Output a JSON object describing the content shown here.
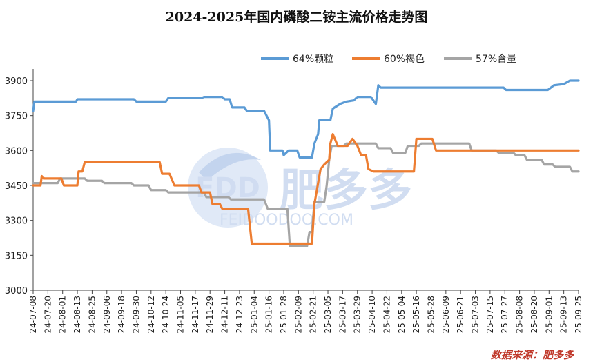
{
  "chart_data": {
    "type": "line",
    "title": "2024-2025年国内磷酸二铵主流价格走势图",
    "xlabel": "",
    "ylabel": "",
    "ylim": [
      3000,
      4050
    ],
    "yticks": [
      3000,
      3150,
      3300,
      3450,
      3600,
      3750,
      3900
    ],
    "xlim": [
      "2024-07-08",
      "2025-09-25"
    ],
    "xticks": [
      "24-07-08",
      "24-07-20",
      "24-08-01",
      "24-08-13",
      "24-08-25",
      "24-09-06",
      "24-09-18",
      "24-09-30",
      "24-10-12",
      "24-10-24",
      "24-11-05",
      "24-11-17",
      "24-11-29",
      "24-12-11",
      "24-12-23",
      "25-01-04",
      "25-01-16",
      "25-01-28",
      "25-02-09",
      "25-02-21",
      "25-03-05",
      "25-03-17",
      "25-03-29",
      "25-04-10",
      "25-04-22",
      "25-05-04",
      "25-05-16",
      "25-05-28",
      "25-06-09",
      "25-06-21",
      "25-07-03",
      "25-07-15",
      "25-07-27",
      "25-08-08",
      "25-08-20",
      "25-09-01",
      "25-09-13",
      "25-09-25"
    ],
    "legend_position": "top-right",
    "grid": false,
    "series": [
      {
        "name": "64%颗粒",
        "color": "#5b9bd5",
        "points": [
          [
            "2024-07-08",
            3770
          ],
          [
            "2024-07-09",
            3810
          ],
          [
            "2024-08-12",
            3810
          ],
          [
            "2024-08-13",
            3820
          ],
          [
            "2024-09-28",
            3820
          ],
          [
            "2024-09-30",
            3810
          ],
          [
            "2024-10-24",
            3810
          ],
          [
            "2024-10-26",
            3825
          ],
          [
            "2024-11-22",
            3825
          ],
          [
            "2024-11-24",
            3830
          ],
          [
            "2024-12-09",
            3830
          ],
          [
            "2024-12-11",
            3820
          ],
          [
            "2024-12-15",
            3820
          ],
          [
            "2024-12-17",
            3785
          ],
          [
            "2024-12-27",
            3785
          ],
          [
            "2024-12-29",
            3770
          ],
          [
            "2025-01-12",
            3770
          ],
          [
            "2025-01-16",
            3730
          ],
          [
            "2025-01-17",
            3600
          ],
          [
            "2025-01-27",
            3600
          ],
          [
            "2025-01-28",
            3580
          ],
          [
            "2025-02-01",
            3600
          ],
          [
            "2025-02-08",
            3600
          ],
          [
            "2025-02-10",
            3570
          ],
          [
            "2025-02-20",
            3570
          ],
          [
            "2025-02-22",
            3630
          ],
          [
            "2025-02-25",
            3670
          ],
          [
            "2025-02-26",
            3730
          ],
          [
            "2025-03-07",
            3730
          ],
          [
            "2025-03-09",
            3780
          ],
          [
            "2025-03-15",
            3800
          ],
          [
            "2025-03-20",
            3810
          ],
          [
            "2025-03-26",
            3815
          ],
          [
            "2025-03-29",
            3830
          ],
          [
            "2025-04-09",
            3830
          ],
          [
            "2025-04-13",
            3800
          ],
          [
            "2025-04-15",
            3880
          ],
          [
            "2025-04-17",
            3870
          ],
          [
            "2025-07-26",
            3870
          ],
          [
            "2025-07-28",
            3860
          ],
          [
            "2025-08-31",
            3860
          ],
          [
            "2025-09-05",
            3880
          ],
          [
            "2025-09-13",
            3885
          ],
          [
            "2025-09-18",
            3900
          ],
          [
            "2025-09-25",
            3900
          ]
        ]
      },
      {
        "name": "60%褐色",
        "color": "#ed7d31",
        "points": [
          [
            "2024-07-08",
            3450
          ],
          [
            "2024-07-14",
            3450
          ],
          [
            "2024-07-15",
            3490
          ],
          [
            "2024-07-17",
            3480
          ],
          [
            "2024-07-31",
            3480
          ],
          [
            "2024-08-02",
            3450
          ],
          [
            "2024-08-13",
            3450
          ],
          [
            "2024-08-14",
            3510
          ],
          [
            "2024-08-17",
            3510
          ],
          [
            "2024-08-19",
            3550
          ],
          [
            "2024-10-19",
            3550
          ],
          [
            "2024-10-21",
            3500
          ],
          [
            "2024-10-27",
            3500
          ],
          [
            "2024-10-31",
            3450
          ],
          [
            "2024-11-20",
            3450
          ],
          [
            "2024-11-22",
            3420
          ],
          [
            "2024-11-29",
            3420
          ],
          [
            "2024-12-01",
            3370
          ],
          [
            "2024-12-07",
            3370
          ],
          [
            "2024-12-09",
            3350
          ],
          [
            "2024-12-30",
            3350
          ],
          [
            "2025-01-02",
            3200
          ],
          [
            "2025-02-20",
            3200
          ],
          [
            "2025-02-22",
            3370
          ],
          [
            "2025-02-27",
            3520
          ],
          [
            "2025-03-02",
            3540
          ],
          [
            "2025-03-06",
            3560
          ],
          [
            "2025-03-07",
            3630
          ],
          [
            "2025-03-09",
            3670
          ],
          [
            "2025-03-13",
            3620
          ],
          [
            "2025-03-21",
            3620
          ],
          [
            "2025-03-25",
            3650
          ],
          [
            "2025-03-29",
            3620
          ],
          [
            "2025-04-01",
            3580
          ],
          [
            "2025-04-05",
            3580
          ],
          [
            "2025-04-07",
            3520
          ],
          [
            "2025-04-11",
            3510
          ],
          [
            "2025-05-14",
            3510
          ],
          [
            "2025-05-16",
            3650
          ],
          [
            "2025-05-29",
            3650
          ],
          [
            "2025-06-01",
            3600
          ],
          [
            "2025-09-25",
            3600
          ]
        ]
      },
      {
        "name": "57%含量",
        "color": "#a5a5a5",
        "points": [
          [
            "2024-07-08",
            3460
          ],
          [
            "2024-07-28",
            3460
          ],
          [
            "2024-07-30",
            3480
          ],
          [
            "2024-08-19",
            3480
          ],
          [
            "2024-08-21",
            3470
          ],
          [
            "2024-09-02",
            3470
          ],
          [
            "2024-09-04",
            3460
          ],
          [
            "2024-09-26",
            3460
          ],
          [
            "2024-09-28",
            3450
          ],
          [
            "2024-10-10",
            3450
          ],
          [
            "2024-10-12",
            3430
          ],
          [
            "2024-10-24",
            3430
          ],
          [
            "2024-10-26",
            3420
          ],
          [
            "2024-11-24",
            3420
          ],
          [
            "2024-11-26",
            3400
          ],
          [
            "2024-12-14",
            3400
          ],
          [
            "2024-12-16",
            3390
          ],
          [
            "2025-01-12",
            3390
          ],
          [
            "2025-01-15",
            3350
          ],
          [
            "2025-01-31",
            3350
          ],
          [
            "2025-02-02",
            3190
          ],
          [
            "2025-02-16",
            3190
          ],
          [
            "2025-02-18",
            3250
          ],
          [
            "2025-02-20",
            3250
          ],
          [
            "2025-02-22",
            3380
          ],
          [
            "2025-03-02",
            3380
          ],
          [
            "2025-03-04",
            3450
          ],
          [
            "2025-03-06",
            3560
          ],
          [
            "2025-03-08",
            3620
          ],
          [
            "2025-03-18",
            3620
          ],
          [
            "2025-03-20",
            3630
          ],
          [
            "2025-04-13",
            3630
          ],
          [
            "2025-04-15",
            3610
          ],
          [
            "2025-04-25",
            3610
          ],
          [
            "2025-04-27",
            3590
          ],
          [
            "2025-05-07",
            3590
          ],
          [
            "2025-05-09",
            3620
          ],
          [
            "2025-05-18",
            3620
          ],
          [
            "2025-05-20",
            3630
          ],
          [
            "2025-06-28",
            3630
          ],
          [
            "2025-06-30",
            3600
          ],
          [
            "2025-07-20",
            3600
          ],
          [
            "2025-07-22",
            3590
          ],
          [
            "2025-08-03",
            3590
          ],
          [
            "2025-08-05",
            3580
          ],
          [
            "2025-08-12",
            3580
          ],
          [
            "2025-08-14",
            3560
          ],
          [
            "2025-08-26",
            3560
          ],
          [
            "2025-08-28",
            3540
          ],
          [
            "2025-09-04",
            3540
          ],
          [
            "2025-09-06",
            3530
          ],
          [
            "2025-09-18",
            3530
          ],
          [
            "2025-09-20",
            3510
          ],
          [
            "2025-09-25",
            3510
          ]
        ]
      }
    ]
  },
  "watermark": {
    "logo_text": "FDD",
    "brand_cn": "肥多多",
    "domain": "FEIDOODOO.COM"
  },
  "source_note": "数据来源：肥多多"
}
